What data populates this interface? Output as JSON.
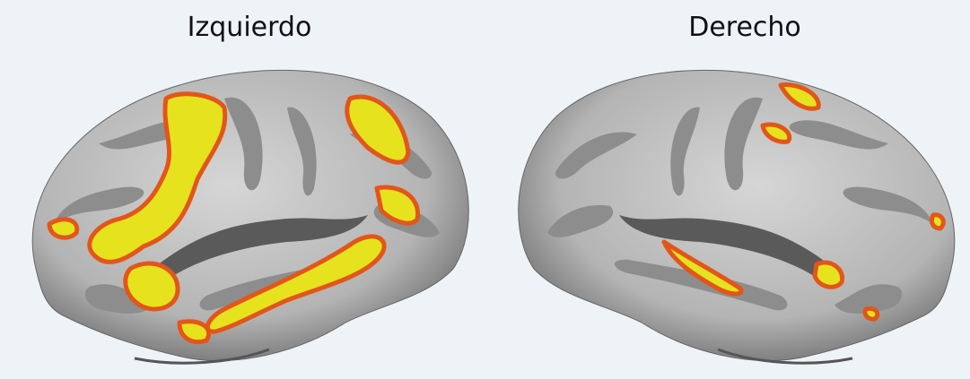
{
  "labels": {
    "left": "Izquierdo",
    "right": "Derecho"
  }
}
